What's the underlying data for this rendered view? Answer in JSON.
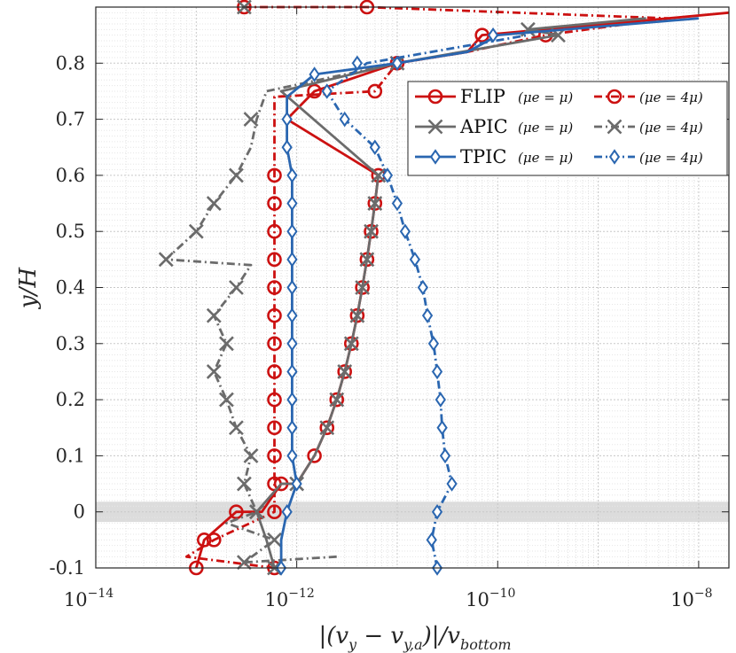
{
  "chart_data": {
    "type": "line",
    "xlabel": "|(v_y − v_{y,a})|/v_bottom",
    "xlabel_parts": {
      "main": "|(v",
      "s1": "y",
      "mid": " − v",
      "s2": "y,a",
      "end": ")|/v",
      "s3": "bottom"
    },
    "ylabel": "y/H",
    "xscale": "log",
    "xlim": [
      1e-14,
      2e-08
    ],
    "ylim": [
      -0.1,
      0.9
    ],
    "x_ticks": [
      {
        "value": 1e-14,
        "mant": "10",
        "exp": "−14"
      },
      {
        "value": 1e-12,
        "mant": "10",
        "exp": "−12"
      },
      {
        "value": 1e-10,
        "mant": "10",
        "exp": "−10"
      },
      {
        "value": 1e-08,
        "mant": "10",
        "exp": "−8"
      }
    ],
    "y_ticks": [
      {
        "value": -0.1,
        "label": "-0.1"
      },
      {
        "value": 0,
        "label": "0"
      },
      {
        "value": 0.1,
        "label": "0.1"
      },
      {
        "value": 0.2,
        "label": "0.2"
      },
      {
        "value": 0.3,
        "label": "0.3"
      },
      {
        "value": 0.4,
        "label": "0.4"
      },
      {
        "value": 0.5,
        "label": "0.5"
      },
      {
        "value": 0.6,
        "label": "0.6"
      },
      {
        "value": 0.7,
        "label": "0.7"
      },
      {
        "value": 0.8,
        "label": "0.8"
      }
    ],
    "grid": true,
    "shaded_band": {
      "y_from": -0.018,
      "y_to": 0.018,
      "color": "#dcdcdc"
    },
    "legend_position": "top-right",
    "legend": {
      "rows": [
        {
          "method": "FLIP",
          "sub_a": "(μe = μ)",
          "sub_b": "(μe = 4μ)"
        },
        {
          "method": "APIC",
          "sub_a": "(μe = μ)",
          "sub_b": "(μe = 4μ)"
        },
        {
          "method": "TPIC",
          "sub_a": "(μe = μ)",
          "sub_b": "(μe = 4μ)"
        }
      ]
    },
    "series": [
      {
        "method": "FLIP",
        "case": "μe = μ",
        "color": "#cc1111",
        "line": "solid",
        "marker": "circle",
        "x": [
          1e-13,
          1.2e-13,
          2.5e-13,
          3e-13,
          4.5e-13,
          7e-13,
          1e-12,
          1.5e-12,
          2e-12,
          2.5e-12,
          3e-12,
          3.5e-12,
          4e-12,
          4.5e-12,
          5e-12,
          5.5e-12,
          6e-12,
          6.5e-12,
          8e-13,
          1.5e-12,
          1e-11,
          5e-11,
          7e-11,
          5e-09,
          2e-08
        ],
        "y": [
          -0.1,
          -0.05,
          0.0,
          0.0,
          0.0,
          0.05,
          0.05,
          0.1,
          0.15,
          0.2,
          0.25,
          0.3,
          0.35,
          0.4,
          0.45,
          0.5,
          0.55,
          0.6,
          0.7,
          0.75,
          0.8,
          0.82,
          0.85,
          0.88,
          0.89
        ],
        "marker_x": [
          1e-13,
          1.2e-13,
          2.5e-13,
          7e-13,
          1.5e-12,
          2e-12,
          2.5e-12,
          3e-12,
          3.5e-12,
          4e-12,
          4.5e-12,
          5e-12,
          5.5e-12,
          6e-12,
          6.5e-12,
          1.5e-12,
          1e-11,
          7e-11,
          3e-13
        ],
        "marker_y": [
          -0.1,
          -0.05,
          0.0,
          0.05,
          0.1,
          0.15,
          0.2,
          0.25,
          0.3,
          0.35,
          0.4,
          0.45,
          0.5,
          0.55,
          0.6,
          0.75,
          0.8,
          0.85,
          0.9
        ]
      },
      {
        "method": "FLIP",
        "case": "μe = 4μ",
        "color": "#cc1111",
        "line": "dashdot",
        "marker": "circle",
        "x": [
          6e-13,
          8e-14,
          1.5e-13,
          6e-13,
          6e-13,
          6e-13,
          6e-13,
          6e-13,
          6e-13,
          6e-13,
          6e-13,
          6e-13,
          6e-13,
          6e-13,
          6e-13,
          6e-13,
          6e-13,
          6e-13,
          6e-13,
          6e-13,
          6e-12,
          1e-11,
          5e-11,
          3e-10,
          5e-09,
          5e-12,
          3e-13
        ],
        "y": [
          -0.1,
          -0.08,
          -0.05,
          0.0,
          0.05,
          0.1,
          0.15,
          0.2,
          0.25,
          0.3,
          0.35,
          0.4,
          0.45,
          0.5,
          0.55,
          0.6,
          0.65,
          0.7,
          0.72,
          0.74,
          0.75,
          0.8,
          0.82,
          0.85,
          0.88,
          0.9,
          0.9
        ],
        "marker_x": [
          6e-13,
          1.5e-13,
          6e-13,
          6e-13,
          6e-13,
          6e-13,
          6e-13,
          6e-13,
          6e-13,
          6e-13,
          6e-13,
          6e-13,
          6e-13,
          6e-13,
          6e-13,
          6e-12,
          3e-10,
          5e-12
        ],
        "marker_y": [
          -0.1,
          -0.05,
          0.0,
          0.05,
          0.1,
          0.15,
          0.2,
          0.25,
          0.3,
          0.35,
          0.4,
          0.45,
          0.5,
          0.55,
          0.6,
          0.75,
          0.85,
          0.9
        ]
      },
      {
        "method": "APIC",
        "case": "μe = μ",
        "color": "#6b6b6b",
        "line": "solid",
        "marker": "x",
        "x": [
          6e-13,
          5e-13,
          4e-13,
          7e-13,
          1e-12,
          1.5e-12,
          2e-12,
          2.5e-12,
          3e-12,
          3.5e-12,
          4e-12,
          4.5e-12,
          5e-12,
          5.5e-12,
          6e-12,
          6.5e-12,
          7e-13,
          1e-11,
          4e-10,
          2e-10,
          3e-09
        ],
        "y": [
          -0.1,
          -0.05,
          0.0,
          0.05,
          0.05,
          0.1,
          0.15,
          0.2,
          0.25,
          0.3,
          0.35,
          0.4,
          0.45,
          0.5,
          0.55,
          0.6,
          0.75,
          0.8,
          0.85,
          0.86,
          0.88
        ],
        "marker_x": [
          6e-13,
          4e-13,
          1e-12,
          2e-12,
          2.5e-12,
          3e-12,
          3.5e-12,
          4e-12,
          4.5e-12,
          5e-12,
          5.5e-12,
          6e-12,
          6.5e-12,
          1e-11,
          4e-10,
          2e-10,
          3e-13
        ],
        "marker_y": [
          -0.1,
          0.0,
          0.05,
          0.15,
          0.2,
          0.25,
          0.3,
          0.35,
          0.4,
          0.45,
          0.5,
          0.55,
          0.6,
          0.8,
          0.85,
          0.86,
          0.9
        ]
      },
      {
        "method": "APIC",
        "case": "μe = 4μ",
        "color": "#6b6b6b",
        "line": "dashdot",
        "marker": "x",
        "x": [
          2.5e-12,
          3e-13,
          6e-13,
          2e-13,
          4e-13,
          3e-13,
          3.5e-13,
          2.5e-13,
          2e-13,
          1.5e-13,
          2e-13,
          1.5e-13,
          2.5e-13,
          3.5e-13,
          5e-14,
          1e-13,
          1.5e-13,
          2.5e-13,
          3.5e-13,
          4e-13,
          5e-13,
          1e-11
        ],
        "y": [
          -0.08,
          -0.09,
          -0.05,
          -0.02,
          0.0,
          0.05,
          0.1,
          0.15,
          0.2,
          0.25,
          0.3,
          0.35,
          0.4,
          0.44,
          0.45,
          0.5,
          0.55,
          0.6,
          0.65,
          0.7,
          0.75,
          0.8
        ],
        "marker_x": [
          3e-13,
          6e-13,
          4e-13,
          3e-13,
          3.5e-13,
          2.5e-13,
          2e-13,
          1.5e-13,
          2e-13,
          1.5e-13,
          2.5e-13,
          5e-14,
          1e-13,
          1.5e-13,
          2.5e-13,
          3.5e-13
        ],
        "marker_y": [
          -0.09,
          -0.05,
          0.0,
          0.05,
          0.1,
          0.15,
          0.2,
          0.25,
          0.3,
          0.35,
          0.4,
          0.45,
          0.5,
          0.55,
          0.6,
          0.7
        ]
      },
      {
        "method": "TPIC",
        "case": "μe = μ",
        "color": "#2a66b0",
        "line": "solid",
        "marker": "diamond",
        "x": [
          7e-13,
          7e-13,
          8e-13,
          1e-12,
          9e-13,
          9e-13,
          9e-13,
          9e-13,
          9e-13,
          9e-13,
          9e-13,
          9e-13,
          9e-13,
          9e-13,
          9e-13,
          8e-13,
          8e-13,
          8e-13,
          8e-13,
          1.5e-12,
          1e-11,
          5e-11,
          8e-11,
          1e-10,
          1e-08
        ],
        "y": [
          -0.1,
          -0.05,
          0.0,
          0.05,
          0.1,
          0.15,
          0.2,
          0.25,
          0.3,
          0.35,
          0.4,
          0.45,
          0.5,
          0.55,
          0.6,
          0.65,
          0.7,
          0.72,
          0.74,
          0.78,
          0.8,
          0.82,
          0.84,
          0.85,
          0.88
        ],
        "marker_x": [
          7e-13,
          8e-13,
          1e-12,
          9e-13,
          9e-13,
          9e-13,
          9e-13,
          9e-13,
          9e-13,
          9e-13,
          9e-13,
          9e-13,
          9e-13,
          9e-13,
          8e-13,
          8e-13,
          1.5e-12,
          1e-11,
          9e-11
        ],
        "marker_y": [
          -0.1,
          0.0,
          0.05,
          0.1,
          0.15,
          0.2,
          0.25,
          0.3,
          0.35,
          0.4,
          0.45,
          0.5,
          0.55,
          0.6,
          0.65,
          0.7,
          0.78,
          0.8,
          0.85
        ]
      },
      {
        "method": "TPIC",
        "case": "μe = 4μ",
        "color": "#2a66b0",
        "line": "dashdot",
        "marker": "diamond",
        "x": [
          2.5e-11,
          2.2e-11,
          2.5e-11,
          3.5e-11,
          3e-11,
          2.8e-11,
          2.7e-11,
          2.5e-11,
          2.3e-11,
          2e-11,
          1.8e-11,
          1.5e-11,
          1.2e-11,
          1e-11,
          8e-12,
          6e-12,
          3e-12,
          2e-12,
          5e-12,
          2e-10
        ],
        "y": [
          -0.1,
          -0.05,
          0.0,
          0.05,
          0.1,
          0.15,
          0.2,
          0.25,
          0.3,
          0.35,
          0.4,
          0.45,
          0.5,
          0.55,
          0.6,
          0.65,
          0.7,
          0.75,
          0.8,
          0.85
        ],
        "marker_x": [
          2.5e-11,
          2.2e-11,
          2.5e-11,
          3.5e-11,
          3e-11,
          2.8e-11,
          2.7e-11,
          2.5e-11,
          2.3e-11,
          2e-11,
          1.8e-11,
          1.5e-11,
          1.2e-11,
          1e-11,
          8e-12,
          6e-12,
          3e-12,
          2e-12,
          4e-12
        ],
        "marker_y": [
          -0.1,
          -0.05,
          0.0,
          0.05,
          0.1,
          0.15,
          0.2,
          0.25,
          0.3,
          0.35,
          0.4,
          0.45,
          0.5,
          0.55,
          0.6,
          0.65,
          0.7,
          0.75,
          0.8
        ]
      }
    ]
  }
}
